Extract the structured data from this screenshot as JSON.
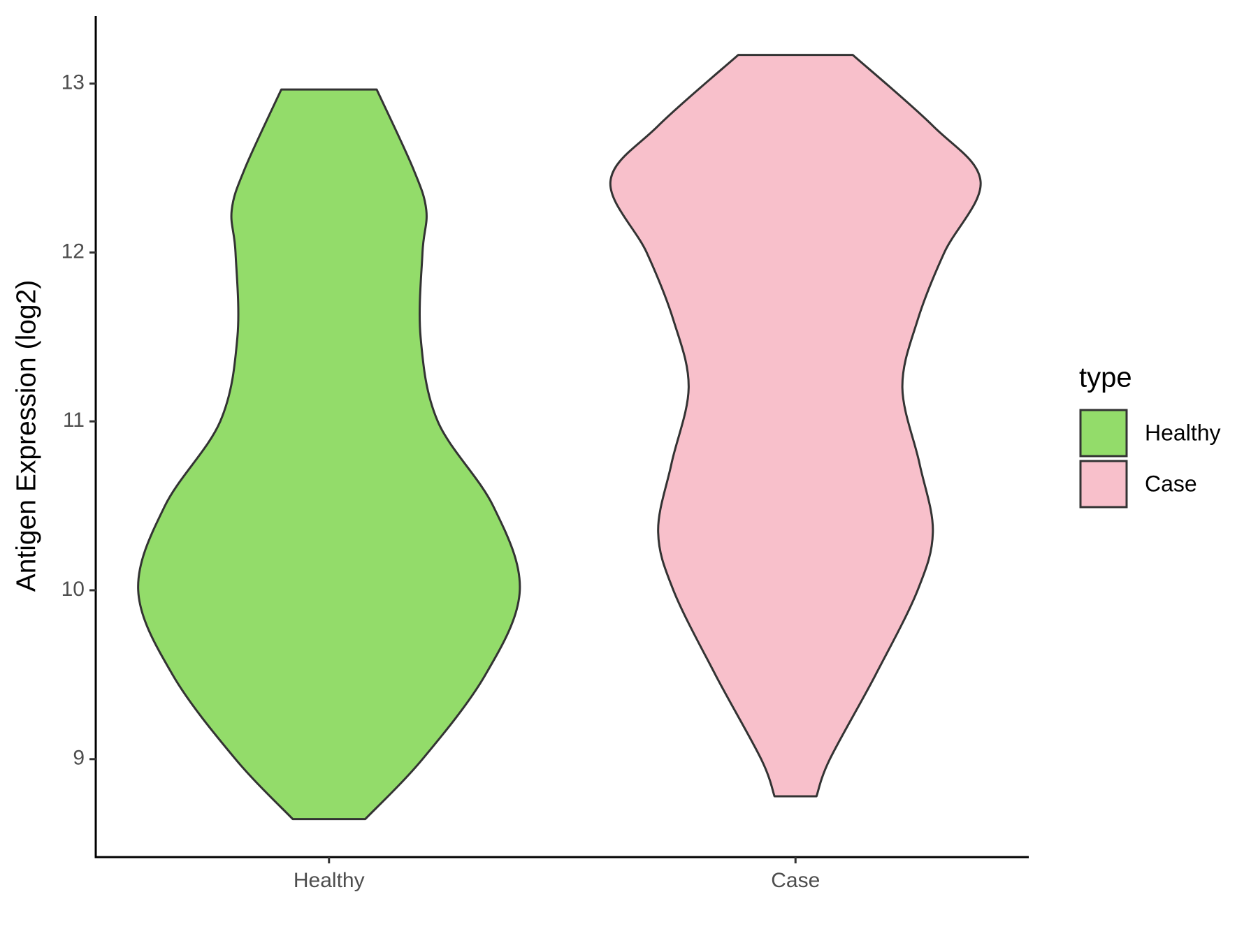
{
  "chart_data": {
    "type": "violin",
    "y_label": "Antigen Expression (log2)",
    "categories": [
      "Healthy",
      "Case"
    ],
    "legend_title": "type",
    "ylim": [
      8.42,
      13.4
    ],
    "yticks": [
      9,
      10,
      11,
      12,
      13
    ],
    "series": [
      {
        "name": "Healthy",
        "color": "#93dc6a",
        "y": [
          8.645,
          9.0,
          9.5,
          10.0,
          10.5,
          11.0,
          11.5,
          12.0,
          12.25,
          12.5,
          12.965
        ],
        "density": [
          0.19,
          0.49,
          0.82,
          1.0,
          0.86,
          0.57,
          0.48,
          0.49,
          0.51,
          0.44,
          0.25
        ]
      },
      {
        "name": "Case",
        "color": "#f8c0cb",
        "y": [
          8.78,
          9.0,
          9.5,
          10.0,
          10.35,
          10.75,
          11.2,
          11.6,
          12.0,
          12.42,
          12.75,
          13.17
        ],
        "density": [
          0.11,
          0.18,
          0.42,
          0.64,
          0.72,
          0.65,
          0.56,
          0.64,
          0.78,
          0.97,
          0.72,
          0.3
        ]
      }
    ]
  }
}
